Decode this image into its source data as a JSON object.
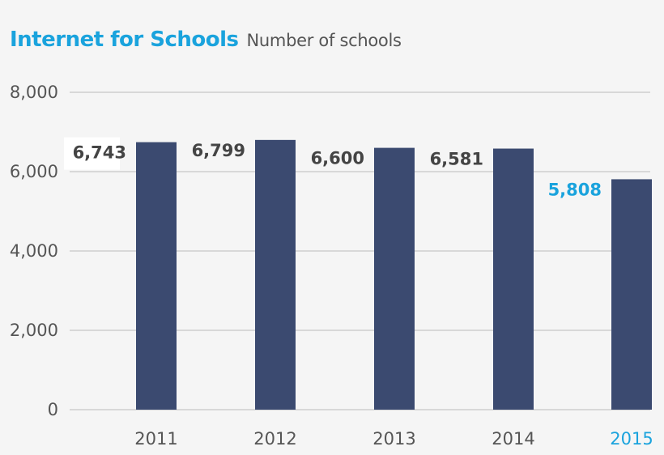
{
  "header": {
    "title": "Internet for Schools",
    "subtitle": "Number of schools"
  },
  "colors": {
    "bar": "#3b4a70",
    "highlight": "#1aa3dd",
    "grid": "#bbbbbb",
    "text": "#555555",
    "label": "#444444"
  },
  "chart_data": {
    "type": "bar",
    "title": "Internet for Schools",
    "subtitle": "Number of schools",
    "categories": [
      "2011",
      "2012",
      "2013",
      "2014",
      "2015"
    ],
    "values": [
      6743,
      6799,
      6600,
      6581,
      5808
    ],
    "value_labels": [
      "6,743",
      "6,799",
      "6,600",
      "6,581",
      "5,808"
    ],
    "highlight_category": "2015",
    "yticks": [
      0,
      2000,
      4000,
      6000,
      8000
    ],
    "ytick_labels": [
      "0",
      "2,000",
      "4,000",
      "6,000",
      "8,000"
    ],
    "ylim": [
      0,
      8000
    ],
    "grid": true,
    "legend": "none"
  }
}
